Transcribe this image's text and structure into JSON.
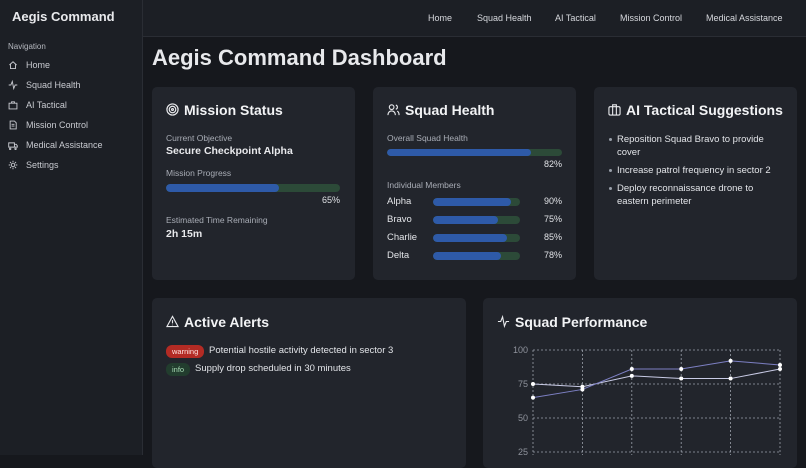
{
  "header": {
    "brand": "Aegis Command",
    "nav": [
      "Home",
      "Squad Health",
      "AI Tactical",
      "Mission Control",
      "Medical Assistance"
    ]
  },
  "sidebar": {
    "section": "Navigation",
    "items": [
      "Home",
      "Squad Health",
      "AI Tactical",
      "Mission Control",
      "Medical Assistance",
      "Settings"
    ]
  },
  "page_title": "Aegis Command Dashboard",
  "mission_status": {
    "title": "Mission Status",
    "objective_label": "Current Objective",
    "objective": "Secure Checkpoint Alpha",
    "progress_label": "Mission Progress",
    "progress": 65,
    "progress_value_label": "65%",
    "time_label": "Estimated Time Remaining",
    "time": "2h 15m"
  },
  "squad_health": {
    "title": "Squad Health",
    "overall_label": "Overall Squad Health",
    "overall": 82,
    "overall_value_label": "82%",
    "members_label": "Individual Members",
    "members": [
      {
        "name": "Alpha",
        "health": 90,
        "health_label": "90%"
      },
      {
        "name": "Bravo",
        "health": 75,
        "health_label": "75%"
      },
      {
        "name": "Charlie",
        "health": 85,
        "health_label": "85%"
      },
      {
        "name": "Delta",
        "health": 78,
        "health_label": "78%"
      }
    ]
  },
  "ai_tactical": {
    "title": "AI Tactical Suggestions",
    "suggestions": [
      "Reposition Squad Bravo to provide cover",
      "Increase patrol frequency in sector 2",
      "Deploy reconnaissance drone to eastern perimeter"
    ]
  },
  "active_alerts": {
    "title": "Active Alerts",
    "alerts": [
      {
        "level": "warning",
        "message": "Potential hostile activity detected in sector 3"
      },
      {
        "level": "info",
        "message": "Supply drop scheduled in 30 minutes"
      }
    ]
  },
  "squad_performance": {
    "title": "Squad Performance",
    "chart": {
      "type": "line",
      "ylim": [
        25,
        100
      ],
      "yticks": [
        25,
        50,
        75,
        100
      ],
      "grid": true,
      "series": [
        {
          "color": "#c9cbe6",
          "values": [
            75,
            73,
            81,
            79,
            79,
            86
          ]
        },
        {
          "color": "#7d80c4",
          "values": [
            65,
            71,
            86,
            86,
            92,
            89
          ]
        }
      ]
    }
  }
}
